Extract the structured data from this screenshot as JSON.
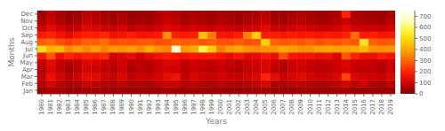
{
  "chart_data": {
    "type": "heatmap",
    "xlabel": "Years",
    "ylabel": "Months",
    "x": [
      1980,
      1981,
      1982,
      1983,
      1984,
      1985,
      1986,
      1987,
      1988,
      1989,
      1990,
      1991,
      1992,
      1993,
      1994,
      1995,
      1996,
      1997,
      1998,
      1999,
      2000,
      2001,
      2002,
      2003,
      2004,
      2005,
      2006,
      2007,
      2008,
      2009,
      2010,
      2011,
      2012,
      2013,
      2014,
      2015,
      2016,
      2017,
      2018,
      2019
    ],
    "xlim": [
      1979.5,
      2019.5
    ],
    "xticks": [
      1980,
      1981,
      1982,
      1983,
      1984,
      1985,
      1986,
      1987,
      1988,
      1989,
      1990,
      1991,
      1992,
      1993,
      1994,
      1995,
      1996,
      1997,
      1998,
      1999,
      2000,
      2001,
      2002,
      2003,
      2004,
      2005,
      2006,
      2007,
      2008,
      2009,
      2010,
      2011,
      2012,
      2013,
      2014,
      2015,
      2016,
      2017,
      2018,
      2019
    ],
    "categories": [
      "Jan",
      "Feb",
      "Mar",
      "Apr",
      "May",
      "Jun",
      "Jul",
      "Aug",
      "Sep",
      "Oct",
      "Nov",
      "Dec"
    ],
    "values": [
      [
        30,
        50,
        40,
        25,
        30,
        45,
        40,
        35,
        30,
        40,
        25,
        30,
        25,
        35,
        45,
        40,
        30,
        38,
        35,
        30,
        35,
        30,
        25,
        35,
        40,
        45,
        30,
        25,
        35,
        40,
        35,
        30,
        30,
        38,
        45,
        35,
        30,
        30,
        25,
        38
      ],
      [
        60,
        110,
        70,
        50,
        55,
        95,
        80,
        65,
        55,
        75,
        45,
        60,
        50,
        70,
        95,
        85,
        60,
        75,
        65,
        55,
        70,
        60,
        50,
        65,
        75,
        110,
        60,
        50,
        70,
        80,
        65,
        55,
        60,
        75,
        110,
        70,
        95,
        60,
        50,
        75
      ],
      [
        80,
        150,
        110,
        70,
        100,
        140,
        130,
        100,
        90,
        120,
        80,
        100,
        90,
        110,
        140,
        160,
        80,
        115,
        100,
        90,
        110,
        95,
        90,
        105,
        120,
        200,
        140,
        90,
        110,
        130,
        105,
        95,
        100,
        120,
        250,
        120,
        105,
        100,
        90,
        120
      ],
      [
        60,
        120,
        80,
        50,
        70,
        110,
        100,
        80,
        70,
        95,
        55,
        70,
        60,
        85,
        110,
        100,
        70,
        90,
        80,
        70,
        85,
        70,
        60,
        80,
        95,
        120,
        80,
        60,
        85,
        100,
        80,
        70,
        75,
        95,
        115,
        85,
        80,
        75,
        60,
        95
      ],
      [
        80,
        130,
        90,
        60,
        80,
        120,
        110,
        90,
        80,
        100,
        65,
        80,
        70,
        95,
        120,
        115,
        80,
        100,
        90,
        80,
        100,
        80,
        70,
        90,
        100,
        120,
        90,
        70,
        95,
        110,
        90,
        80,
        85,
        100,
        120,
        95,
        90,
        85,
        70,
        100
      ],
      [
        180,
        280,
        150,
        200,
        170,
        200,
        190,
        210,
        100,
        120,
        140,
        100,
        130,
        160,
        180,
        165,
        160,
        175,
        175,
        185,
        165,
        140,
        175,
        130,
        140,
        175,
        150,
        270,
        175,
        165,
        165,
        145,
        160,
        120,
        280,
        200,
        155,
        155,
        185,
        165
      ],
      [
        500,
        420,
        430,
        350,
        390,
        350,
        380,
        340,
        375,
        365,
        385,
        355,
        410,
        365,
        340,
        700,
        375,
        405,
        580,
        470,
        335,
        385,
        405,
        365,
        355,
        365,
        370,
        405,
        380,
        360,
        365,
        385,
        405,
        385,
        380,
        405,
        430,
        365,
        360,
        370
      ],
      [
        290,
        310,
        265,
        240,
        260,
        295,
        285,
        310,
        260,
        275,
        265,
        280,
        285,
        265,
        275,
        295,
        285,
        295,
        275,
        295,
        275,
        265,
        285,
        265,
        275,
        480,
        295,
        275,
        285,
        275,
        295,
        265,
        285,
        275,
        295,
        275,
        530,
        295,
        275,
        285
      ],
      [
        180,
        205,
        165,
        135,
        175,
        195,
        185,
        205,
        155,
        165,
        185,
        165,
        175,
        185,
        360,
        195,
        185,
        195,
        450,
        335,
        175,
        165,
        185,
        340,
        475,
        185,
        185,
        175,
        185,
        175,
        185,
        165,
        185,
        175,
        195,
        315,
        185,
        195,
        175,
        185
      ],
      [
        100,
        135,
        105,
        75,
        85,
        125,
        115,
        100,
        90,
        110,
        80,
        95,
        85,
        105,
        125,
        115,
        95,
        110,
        100,
        90,
        105,
        95,
        85,
        100,
        110,
        130,
        95,
        85,
        105,
        115,
        100,
        90,
        95,
        110,
        130,
        105,
        100,
        95,
        85,
        110
      ],
      [
        55,
        95,
        65,
        40,
        50,
        85,
        75,
        60,
        50,
        70,
        40,
        55,
        45,
        65,
        90,
        80,
        55,
        70,
        60,
        50,
        65,
        55,
        45,
        60,
        70,
        90,
        55,
        45,
        65,
        75,
        60,
        50,
        55,
        70,
        95,
        65,
        60,
        55,
        45,
        70
      ],
      [
        35,
        80,
        50,
        25,
        35,
        70,
        60,
        45,
        38,
        55,
        28,
        40,
        32,
        55,
        75,
        65,
        40,
        58,
        48,
        40,
        55,
        42,
        35,
        48,
        58,
        70,
        40,
        35,
        50,
        60,
        45,
        38,
        40,
        55,
        200,
        50,
        45,
        40,
        35,
        52
      ]
    ],
    "colorbar_range": [
      0,
      750
    ],
    "colorbar_ticks": [
      0,
      100,
      200,
      300,
      400,
      500,
      600,
      700
    ]
  }
}
